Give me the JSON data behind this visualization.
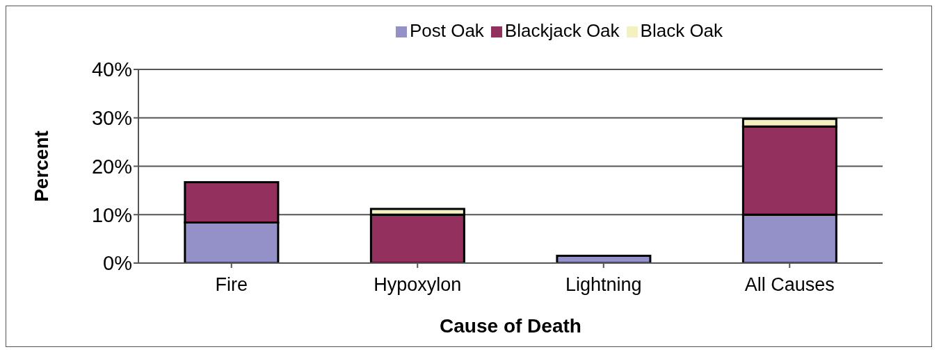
{
  "chart_data": {
    "type": "bar",
    "stacked": true,
    "xlabel": "Cause of Death",
    "ylabel": "Percent",
    "categories": [
      "Fire",
      "Hypoxylon",
      "Lightning",
      "All Causes"
    ],
    "series": [
      {
        "name": "Post Oak",
        "color": "#9490c8",
        "values": [
          8.4,
          0,
          1.5,
          10.0
        ]
      },
      {
        "name": "Blackjack Oak",
        "color": "#93305e",
        "values": [
          8.3,
          10.0,
          0,
          18.2
        ]
      },
      {
        "name": "Black Oak",
        "color": "#f5f0c0",
        "values": [
          0,
          1.2,
          0,
          1.6
        ]
      }
    ],
    "ylim": [
      0,
      40
    ],
    "yticks": [
      {
        "value": 0,
        "label": "0%"
      },
      {
        "value": 10,
        "label": "10%"
      },
      {
        "value": 20,
        "label": "20%"
      },
      {
        "value": 30,
        "label": "30%"
      },
      {
        "value": 40,
        "label": "40%"
      }
    ],
    "grid": "y",
    "legend": "top"
  }
}
